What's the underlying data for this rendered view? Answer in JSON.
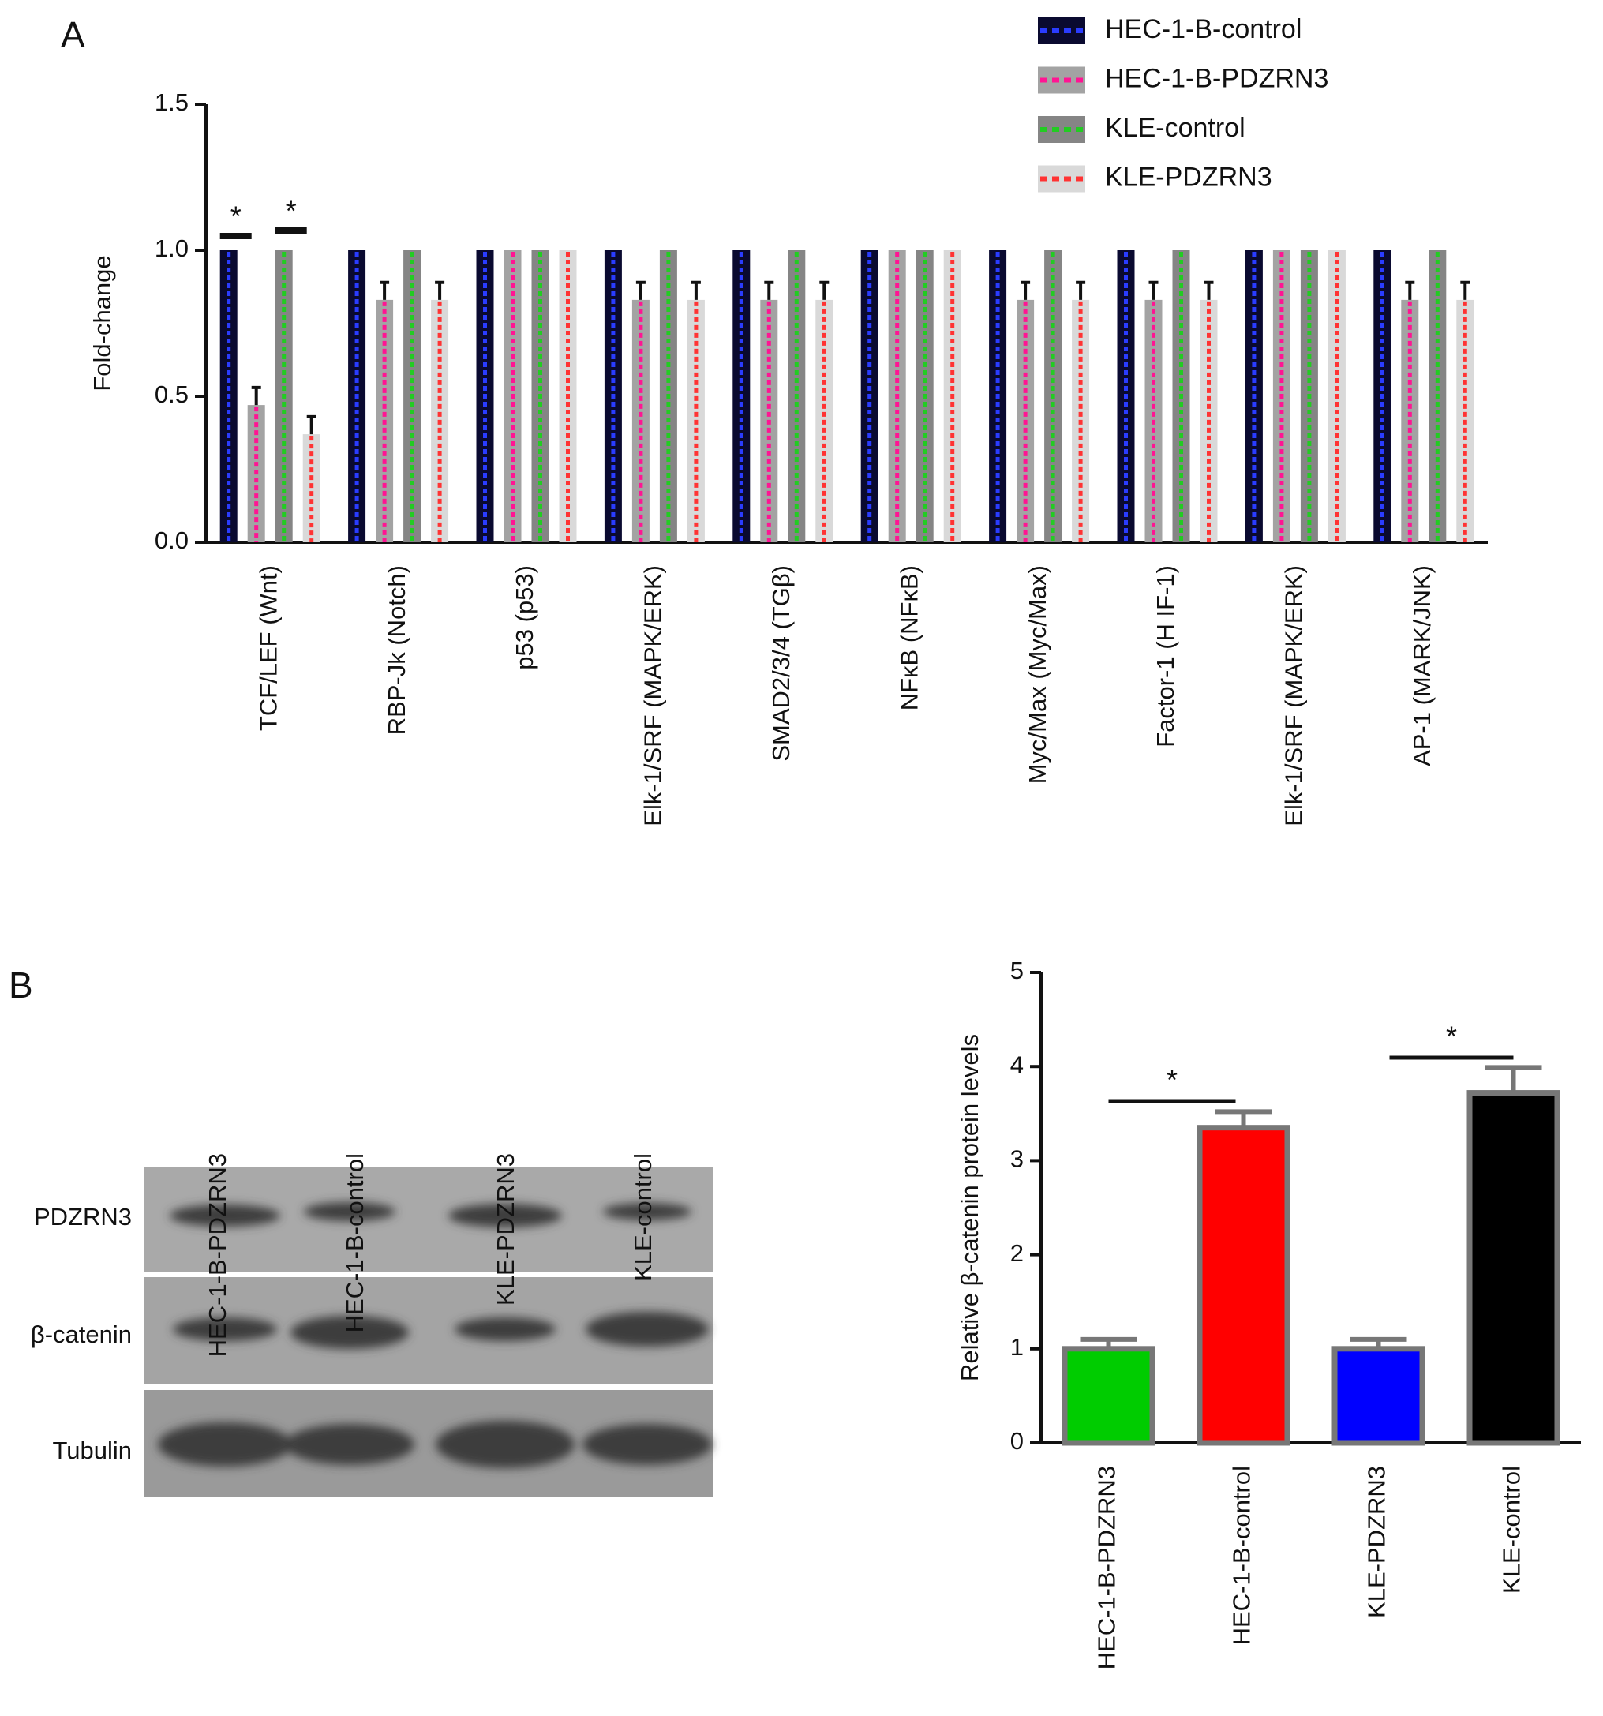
{
  "panel_labels": [
    "A",
    "B"
  ],
  "chart_data": [
    {
      "type": "bar",
      "y_label": "Fold-change",
      "categories": [
        "TCF/LEF (Wnt)",
        "RBP-Jk (Notch)",
        "p53 (p53)",
        "Elk-1/SRF (MAPK/ERK)",
        "SMAD2/3/4 (TGβ)",
        "NFκB (NFκB)",
        "Myc/Max (Myc/Max)",
        "Factor-1 (H IF-1)",
        "Elk-1/SRF (MAPK/ERK)",
        "AP-1 (MARK/JNK)"
      ],
      "series": [
        {
          "name": "HEC-1-B-control",
          "color": "#0a0a30",
          "pattern_color": "#2a3cff",
          "values": [
            1,
            1,
            1,
            1,
            1,
            1,
            1,
            1,
            1,
            1
          ],
          "errors": [
            null,
            null,
            null,
            null,
            null,
            null,
            null,
            null,
            null,
            null
          ]
        },
        {
          "name": "HEC-1-B-PDZRN3",
          "color": "#a3a3a3",
          "pattern_color": "#ff1493",
          "values": [
            0.47,
            0.83,
            1,
            0.83,
            0.83,
            1,
            0.83,
            0.83,
            1,
            0.83
          ],
          "errors": [
            0.06,
            0.06,
            null,
            0.06,
            0.06,
            null,
            0.06,
            0.06,
            null,
            0.06
          ]
        },
        {
          "name": "KLE-control",
          "color": "#858585",
          "pattern_color": "#22cc22",
          "values": [
            1,
            1,
            1,
            1,
            1,
            1,
            1,
            1,
            1,
            1
          ],
          "errors": [
            null,
            null,
            null,
            null,
            null,
            null,
            null,
            null,
            null,
            null
          ]
        },
        {
          "name": "KLE-PDZRN3",
          "color": "#d9d9d9",
          "pattern_color": "#ff3333",
          "values": [
            0.37,
            0.83,
            1,
            0.83,
            0.83,
            1,
            0.83,
            0.83,
            1,
            0.83
          ],
          "errors": [
            0.06,
            0.06,
            null,
            0.06,
            0.06,
            null,
            0.06,
            0.06,
            null,
            0.06
          ]
        }
      ],
      "ylim": [
        0,
        1.5
      ],
      "yticks": [
        {
          "value": 0,
          "label": "0.0"
        },
        0.5,
        {
          "value": 1,
          "label": "1.0"
        },
        1.5
      ],
      "grid": false,
      "legend": "top-right",
      "annotations": [
        "*",
        "*"
      ]
    },
    {
      "type": "bar",
      "y_label": "Relative β-catenin protein levels",
      "categories": [
        "HEC-1-B-PDZRN3",
        "HEC-1-B-control",
        "KLE-PDZRN3",
        "KLE-control"
      ],
      "values": [
        1.0,
        3.35,
        1.0,
        3.72
      ],
      "errors": [
        0.1,
        0.17,
        0.1,
        0.27
      ],
      "colors": [
        "#00cc00",
        "#ff0000",
        "#0000ff",
        "#000000"
      ],
      "outline_color": "#777777",
      "ylim": [
        0,
        5
      ],
      "yticks": [
        0,
        1,
        2,
        3,
        4,
        5
      ],
      "grid": false,
      "annotations": [
        "*",
        "*"
      ]
    }
  ],
  "blot": {
    "lanes": [
      "HEC-1-B-PDZRN3",
      "HEC-1-B-control",
      "KLE-PDZRN3",
      "KLE-control"
    ],
    "rows": [
      "PDZRN3",
      "β-catenin",
      "Tubulin"
    ]
  }
}
